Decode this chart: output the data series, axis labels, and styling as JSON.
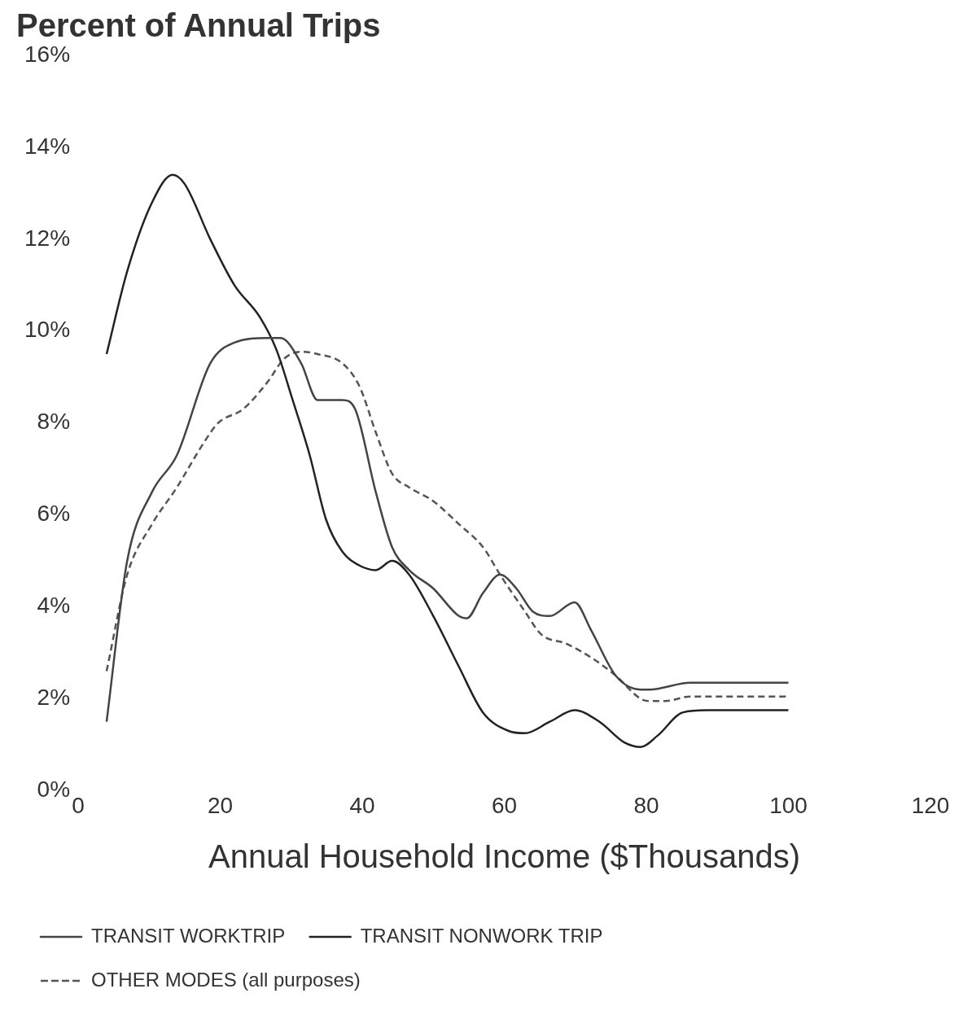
{
  "chart_data": {
    "type": "line",
    "title": "Percent of Annual Trips",
    "xlabel": "Annual Household Income ($Thousands)",
    "xlim": [
      0,
      120
    ],
    "xticks": [
      0,
      20,
      40,
      60,
      80,
      100,
      120
    ],
    "ylim": [
      0,
      16
    ],
    "yticks": [
      {
        "value": 0,
        "label": "0%"
      },
      {
        "value": 2,
        "label": "2%"
      },
      {
        "value": 4,
        "label": "4%"
      },
      {
        "value": 6,
        "label": "6%"
      },
      {
        "value": 8,
        "label": "8%"
      },
      {
        "value": 10,
        "label": "10%"
      },
      {
        "value": 12,
        "label": "12%"
      },
      {
        "value": 14,
        "label": "14%"
      },
      {
        "value": 16,
        "label": "16%"
      }
    ],
    "legend": "bottom",
    "marker": "none",
    "series": [
      {
        "name": "TRANSIT WORKTRIP",
        "color": "#444444",
        "line_style": "solid",
        "x": [
          4,
          6.9,
          10.4,
          13.9,
          18.6,
          22,
          26.7,
          28.5,
          31.4,
          33.7,
          37.2,
          39,
          41.9,
          44.2,
          46.6,
          50,
          53.6,
          54.7,
          57,
          59.4,
          61.7,
          64,
          66.4,
          69.9,
          72.2,
          75.7,
          79.2,
          80.4,
          86.2,
          92,
          100
        ],
        "values": [
          1.5,
          5,
          6.5,
          7.3,
          9.3,
          9.75,
          9.85,
          9.85,
          9.3,
          8.5,
          8.5,
          8.3,
          6.5,
          5.3,
          4.8,
          4.4,
          3.8,
          3.75,
          4.3,
          4.7,
          4.4,
          3.9,
          3.8,
          4.1,
          3.5,
          2.5,
          2.2,
          2.2,
          2.35,
          2.35,
          2.35
        ]
      },
      {
        "name": "TRANSIT NONWORK TRIP",
        "color": "#222222",
        "line_style": "solid",
        "x": [
          4,
          6.9,
          10.4,
          13.3,
          15,
          18.6,
          22,
          25.6,
          27.9,
          30.2,
          32.6,
          34.9,
          37.2,
          39.6,
          41.9,
          44.2,
          46.6,
          50,
          53.6,
          57,
          60.6,
          62.9,
          66.4,
          69.9,
          73.4,
          76.9,
          79.2,
          81.6,
          85.1,
          88.6,
          100
        ],
        "values": [
          9.5,
          11.3,
          12.8,
          13.4,
          13.2,
          12,
          11,
          10.3,
          9.6,
          8.5,
          7.3,
          5.9,
          5.2,
          4.9,
          4.8,
          5,
          4.7,
          3.8,
          2.7,
          1.7,
          1.3,
          1.25,
          1.5,
          1.75,
          1.5,
          1.05,
          0.95,
          1.2,
          1.7,
          1.75,
          1.75
        ]
      },
      {
        "name": "OTHER MODES (all purposes)",
        "color": "#555555",
        "line_style": "dashed",
        "x": [
          4,
          6.9,
          10.4,
          13.9,
          17.4,
          19.7,
          23.2,
          26.7,
          29,
          31.4,
          33.7,
          37.2,
          39.6,
          41.9,
          44.2,
          46.6,
          50,
          53.6,
          57,
          59.4,
          62.9,
          65.2,
          68.7,
          72.2,
          75.7,
          79.2,
          80.4,
          82.7,
          86.2,
          100
        ],
        "values": [
          2.6,
          4.7,
          5.8,
          6.6,
          7.5,
          8,
          8.3,
          8.9,
          9.4,
          9.55,
          9.5,
          9.3,
          8.8,
          7.8,
          6.9,
          6.6,
          6.3,
          5.8,
          5.3,
          4.7,
          3.9,
          3.4,
          3.2,
          2.9,
          2.5,
          2,
          1.95,
          1.95,
          2.05,
          2.05
        ]
      }
    ]
  }
}
